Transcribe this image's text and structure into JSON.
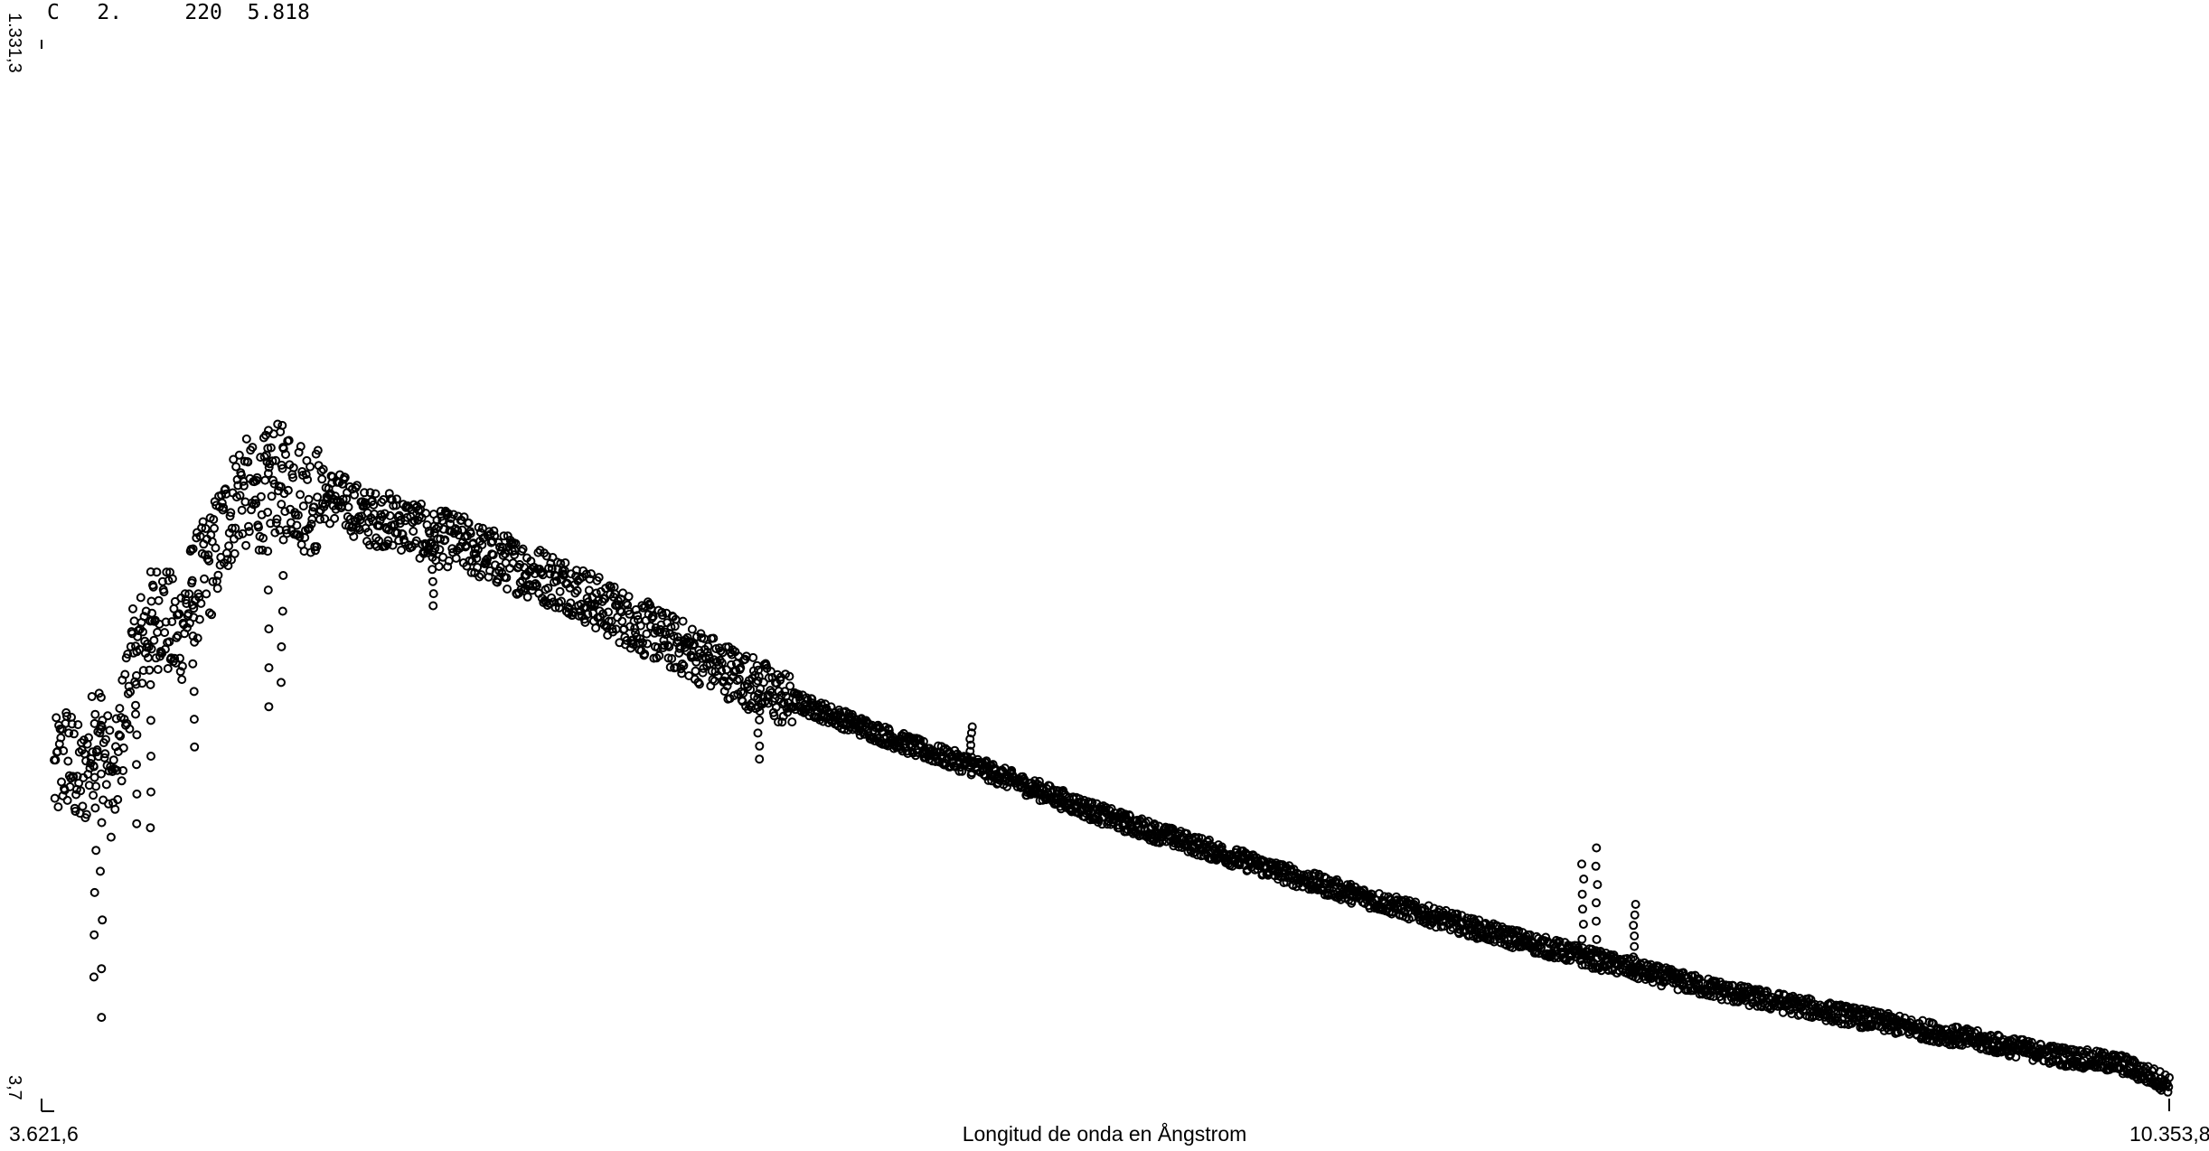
{
  "header": {
    "code": "C",
    "field1": "2.",
    "field2": "220",
    "field3": "5.818"
  },
  "chart_data": {
    "type": "scatter",
    "title": "",
    "xlabel": "Longitud de onda en Ångstrom",
    "ylabel": "",
    "x_ticks": [
      "3.621,6",
      "10.353,8"
    ],
    "y_ticks": [
      "1.331,3",
      "3,7"
    ],
    "xlim": [
      3621.6,
      10353.8
    ],
    "ylim": [
      3.7,
      1331.3
    ],
    "grid": false,
    "legend": "none",
    "marker": "open-circle",
    "color": "#000000",
    "series": [
      {
        "x": [
          3660,
          3700,
          3750,
          3800,
          3850,
          3900,
          3950,
          4000,
          4050,
          4100,
          4150,
          4200,
          4250,
          4300,
          4350,
          4400,
          4450,
          4500,
          4550,
          4600,
          4650,
          4700,
          4750,
          4800,
          4850,
          4900,
          4950,
          5000,
          5100,
          5200,
          5300,
          5400,
          5500,
          5600,
          5800,
          6000,
          6200,
          6400,
          6600,
          6800,
          7000,
          7200,
          7400,
          7600,
          7800,
          8000,
          8200,
          8400,
          8600,
          8800,
          9000,
          9200,
          9400,
          9600,
          9800,
          10000,
          10200,
          10353.8
        ],
        "y": [
          430,
          460,
          420,
          500,
          410,
          560,
          610,
          640,
          600,
          660,
          690,
          740,
          790,
          770,
          800,
          800,
          780,
          775,
          770,
          760,
          745,
          745,
          740,
          735,
          720,
          720,
          715,
          705,
          690,
          675,
          660,
          635,
          615,
          595,
          555,
          515,
          485,
          455,
          430,
          400,
          370,
          345,
          320,
          295,
          272,
          250,
          228,
          208,
          188,
          168,
          150,
          135,
          120,
          105,
          90,
          75,
          65,
          40
        ]
      }
    ],
    "absorption_dips": [
      {
        "x": 3790,
        "y": 170
      },
      {
        "x": 3810,
        "y": 120
      },
      {
        "x": 3920,
        "y": 360
      },
      {
        "x": 3968,
        "y": 355
      },
      {
        "x": 4102,
        "y": 455
      },
      {
        "x": 4340,
        "y": 505
      },
      {
        "x": 4383,
        "y": 535
      },
      {
        "x": 4861,
        "y": 630
      },
      {
        "x": 5890,
        "y": 440
      },
      {
        "x": 6563,
        "y": 480
      },
      {
        "x": 8498,
        "y": 310
      },
      {
        "x": 8542,
        "y": 330
      },
      {
        "x": 8662,
        "y": 260
      }
    ]
  }
}
